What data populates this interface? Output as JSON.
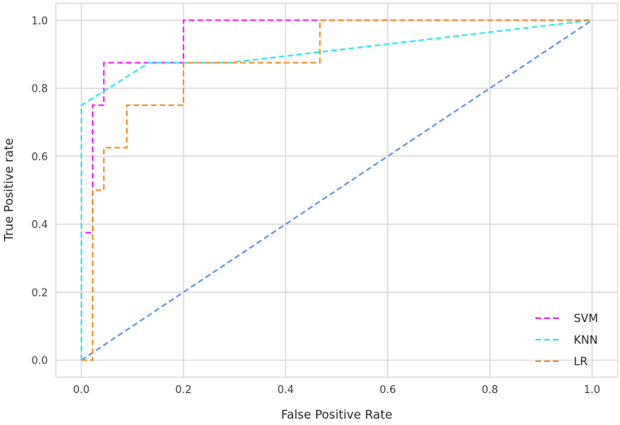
{
  "chart_data": {
    "type": "line",
    "title": "",
    "xlabel": "False Positive Rate",
    "ylabel": "True Positive rate",
    "xlim": [
      -0.05,
      1.05
    ],
    "ylim": [
      -0.05,
      1.05
    ],
    "xticks": [
      0.0,
      0.2,
      0.4,
      0.6,
      0.8,
      1.0
    ],
    "yticks": [
      0.0,
      0.2,
      0.4,
      0.6,
      0.8,
      1.0
    ],
    "xtick_labels": [
      "0.0",
      "0.2",
      "0.4",
      "0.6",
      "0.8",
      "1.0"
    ],
    "ytick_labels": [
      "0.0",
      "0.2",
      "0.4",
      "0.6",
      "0.8",
      "1.0"
    ],
    "grid": true,
    "legend_position": "bottom-right",
    "series": [
      {
        "name": "SVM",
        "color": "#ff1fff",
        "x": [
          0.0,
          0.0,
          0.0,
          0.022,
          0.022,
          0.022,
          0.044,
          0.044,
          0.2,
          0.2,
          1.0
        ],
        "y": [
          0.0,
          0.375,
          0.375,
          0.375,
          0.5,
          0.75,
          0.75,
          0.875,
          0.875,
          1.0,
          1.0
        ]
      },
      {
        "name": "KNN",
        "color": "#27e8f5",
        "x": [
          0.0,
          0.0,
          0.0,
          0.133,
          0.289,
          1.0
        ],
        "y": [
          0.0,
          0.125,
          0.75,
          0.875,
          0.875,
          1.0
        ]
      },
      {
        "name": "LR",
        "color": "#f5912b",
        "x": [
          0.0,
          0.022,
          0.022,
          0.044,
          0.044,
          0.089,
          0.089,
          0.2,
          0.2,
          0.467,
          0.467,
          1.0
        ],
        "y": [
          0.0,
          0.0,
          0.5,
          0.5,
          0.625,
          0.625,
          0.75,
          0.75,
          0.875,
          0.875,
          1.0,
          1.0
        ]
      }
    ],
    "reference_line": {
      "x": [
        0.0,
        1.0
      ],
      "y": [
        0.0,
        1.0
      ],
      "color": "#5b96e0"
    }
  }
}
